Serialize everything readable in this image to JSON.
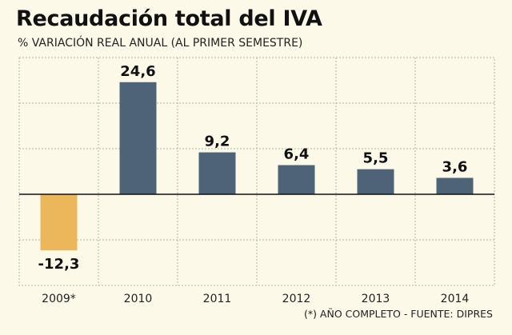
{
  "title": "Recaudación total del IVA",
  "subtitle": "% VARIACIÓN REAL ANUAL (AL PRIMER SEMESTRE)",
  "footnote": "(*) AÑO COMPLETO - FUENTE: DIPRES",
  "colors": {
    "background": "#fcf9e9",
    "positive_bar": "#4e6278",
    "highlight_bar": "#ecb65a",
    "grid": "#b5b5a5",
    "zero_line": "#111111"
  },
  "chart_data": {
    "type": "bar",
    "title": "Recaudación total del IVA",
    "subtitle": "% VARIACIÓN REAL ANUAL (AL PRIMER SEMESTRE)",
    "categories": [
      "2009*",
      "2010",
      "2011",
      "2012",
      "2013",
      "2014"
    ],
    "values": [
      -12.3,
      24.6,
      9.2,
      6.4,
      5.5,
      3.6
    ],
    "value_labels": [
      "-12,3",
      "24,6",
      "9,2",
      "6,4",
      "5,5",
      "3,6"
    ],
    "highlight_index": 0,
    "ylim": [
      -20,
      30
    ],
    "grid": true,
    "xlabel": "",
    "ylabel": ""
  }
}
